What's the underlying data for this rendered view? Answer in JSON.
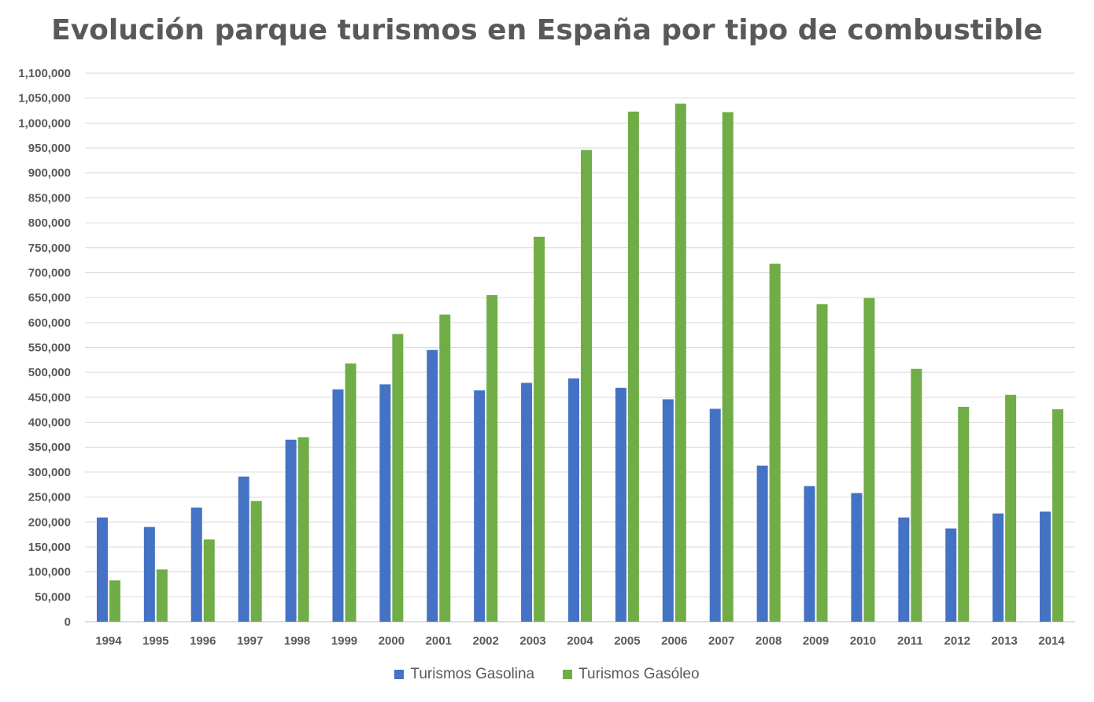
{
  "chart_data": {
    "type": "bar",
    "title": "Evolución parque turismos en España por tipo de combustible",
    "xlabel": "",
    "ylabel": "",
    "ylim": [
      0,
      1100000
    ],
    "y_tick_step": 50000,
    "grid": true,
    "legend_position": "bottom",
    "categories": [
      "1994",
      "1995",
      "1996",
      "1997",
      "1998",
      "1999",
      "2000",
      "2001",
      "2002",
      "2003",
      "2004",
      "2005",
      "2006",
      "2007",
      "2008",
      "2009",
      "2010",
      "2011",
      "2012",
      "2013",
      "2014"
    ],
    "series": [
      {
        "name": "Turismos Gasolina",
        "color": "#4472c4",
        "values": [
          209000,
          190000,
          229000,
          291000,
          365000,
          466000,
          476000,
          545000,
          464000,
          479000,
          488000,
          469000,
          446000,
          427000,
          313000,
          272000,
          258000,
          209000,
          187000,
          217000,
          221000
        ]
      },
      {
        "name": "Turismos Gasóleo",
        "color": "#70ad47",
        "values": [
          83000,
          105000,
          165000,
          242000,
          370000,
          518000,
          577000,
          616000,
          655000,
          772000,
          946000,
          1023000,
          1039000,
          1022000,
          718000,
          637000,
          649000,
          507000,
          431000,
          455000,
          426000
        ]
      }
    ]
  }
}
